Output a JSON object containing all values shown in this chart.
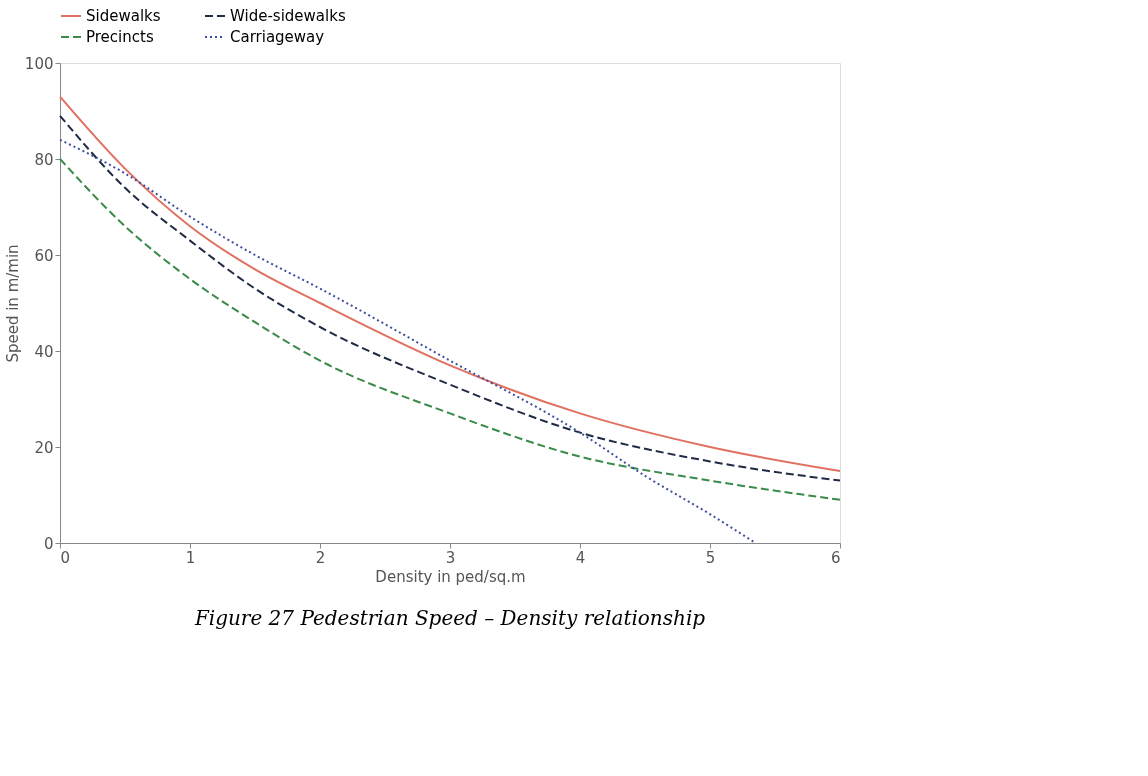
{
  "chart_data": {
    "type": "line",
    "title": "Figure 27 Pedestrian Speed – Density relationship",
    "xlabel": "Density in ped/sq.m",
    "ylabel": "Speed in m/min",
    "xlim": [
      0,
      6
    ],
    "xticks": [
      0,
      1,
      2,
      3,
      4,
      5,
      6
    ],
    "ylim": [
      0,
      100
    ],
    "yticks": [
      0,
      20,
      40,
      60,
      80,
      100
    ],
    "grid": false,
    "legend": "top",
    "marker": "none",
    "series": [
      {
        "name": "Sidewalks",
        "color": "#e07060",
        "line_style": "solid",
        "x": [
          0,
          0.5,
          1,
          1.5,
          2,
          3,
          4,
          5,
          6
        ],
        "values": [
          93,
          78,
          66,
          57,
          50,
          37,
          27,
          20,
          15
        ]
      },
      {
        "name": "Wide-sidewalks",
        "color": "#1f2a44",
        "line_style": "dashed",
        "x": [
          0,
          0.5,
          1,
          1.5,
          2,
          3,
          4,
          5,
          6
        ],
        "values": [
          89,
          74,
          63,
          53,
          45,
          33,
          23,
          17,
          13
        ]
      },
      {
        "name": "Precincts",
        "color": "#3a8a4a",
        "line_style": "dashed",
        "x": [
          0,
          0.5,
          1,
          1.5,
          2,
          3,
          4,
          5,
          6
        ],
        "values": [
          80,
          66,
          55,
          46,
          38,
          27,
          18,
          13,
          9
        ]
      },
      {
        "name": "Carriageway",
        "color": "#3b4fa0",
        "line_style": "dotted",
        "x": [
          0,
          0.5,
          1,
          1.5,
          2,
          3,
          4,
          4.5,
          5,
          5.35
        ],
        "values": [
          84,
          77,
          68,
          60,
          53,
          38,
          23,
          14,
          6,
          0
        ]
      }
    ]
  }
}
